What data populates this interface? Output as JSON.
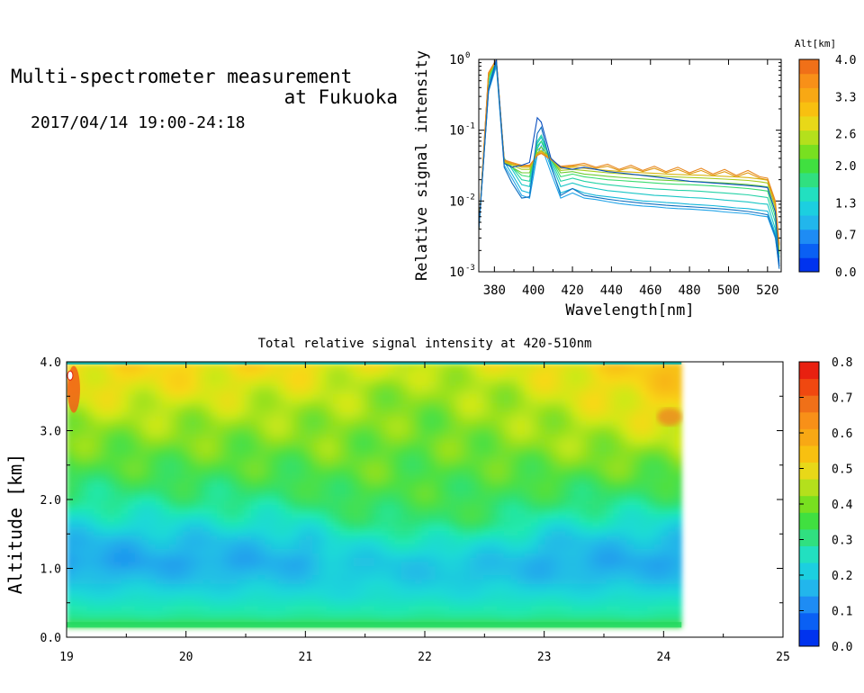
{
  "header": {
    "title_line1": "Multi-spectrometer measurement",
    "title_line2": "at Fukuoka",
    "date_range": "2017/04/14 19:00-24:18"
  },
  "chart_data": [
    {
      "type": "line",
      "xlabel": "Wavelength[nm]",
      "ylabel": "Relative signal intensity",
      "xlim": [
        372,
        527
      ],
      "ylim": [
        0.001,
        1
      ],
      "yscale": "log",
      "x_ticks": [
        "380",
        "400",
        "420",
        "440",
        "460",
        "480",
        "500",
        "520"
      ],
      "y_ticks": [
        {
          "base": "10",
          "exp": "-3"
        },
        {
          "base": "10",
          "exp": "-2"
        },
        {
          "base": "10",
          "exp": "-1"
        },
        {
          "base": "10",
          "exp": "0"
        }
      ],
      "x": [
        372,
        377,
        381,
        385,
        389,
        394,
        398,
        402,
        404,
        409,
        414,
        420,
        426,
        432,
        438,
        444,
        450,
        456,
        462,
        468,
        474,
        480,
        486,
        492,
        498,
        504,
        510,
        516,
        520,
        524,
        526
      ],
      "series": [
        {
          "altitude_km": 0.3,
          "color": "#1fa3e8",
          "values": [
            0.004,
            0.35,
            0.8,
            0.032,
            0.021,
            0.012,
            0.011,
            0.045,
            0.06,
            0.025,
            0.011,
            0.013,
            0.011,
            0.0105,
            0.0098,
            0.0092,
            0.0088,
            0.0085,
            0.0083,
            0.008,
            0.0078,
            0.0077,
            0.0075,
            0.0073,
            0.007,
            0.0068,
            0.0066,
            0.0062,
            0.006,
            0.003,
            0.0012
          ]
        },
        {
          "altitude_km": 0.6,
          "color": "#12b6da",
          "values": [
            0.004,
            0.4,
            0.85,
            0.036,
            0.024,
            0.014,
            0.013,
            0.055,
            0.07,
            0.03,
            0.013,
            0.015,
            0.013,
            0.012,
            0.0115,
            0.011,
            0.0105,
            0.01,
            0.0098,
            0.0095,
            0.0093,
            0.009,
            0.0088,
            0.0086,
            0.0083,
            0.008,
            0.0078,
            0.0074,
            0.0072,
            0.0035,
            0.0013
          ]
        },
        {
          "altitude_km": 0.9,
          "color": "#19c6c6",
          "values": [
            0.004,
            0.45,
            0.9,
            0.04,
            0.028,
            0.017,
            0.016,
            0.065,
            0.08,
            0.035,
            0.016,
            0.018,
            0.016,
            0.015,
            0.014,
            0.0135,
            0.013,
            0.0125,
            0.012,
            0.0118,
            0.0115,
            0.0112,
            0.011,
            0.0107,
            0.0103,
            0.01,
            0.0097,
            0.0092,
            0.009,
            0.004,
            0.0014
          ]
        },
        {
          "altitude_km": 1.2,
          "color": "#24d2a6",
          "values": [
            0.004,
            0.5,
            0.92,
            0.04,
            0.03,
            0.02,
            0.019,
            0.07,
            0.085,
            0.038,
            0.019,
            0.021,
            0.019,
            0.0178,
            0.017,
            0.0163,
            0.0157,
            0.0152,
            0.0148,
            0.0145,
            0.0142,
            0.014,
            0.0137,
            0.0133,
            0.013,
            0.0126,
            0.0122,
            0.0116,
            0.0112,
            0.005,
            0.0016
          ]
        },
        {
          "altitude_km": 1.6,
          "color": "#38dc6e",
          "values": [
            0.004,
            0.55,
            0.95,
            0.035,
            0.03,
            0.023,
            0.022,
            0.06,
            0.07,
            0.04,
            0.022,
            0.024,
            0.022,
            0.021,
            0.02,
            0.0195,
            0.019,
            0.0185,
            0.018,
            0.0175,
            0.0172,
            0.017,
            0.0167,
            0.0163,
            0.0159,
            0.0155,
            0.015,
            0.0143,
            0.0138,
            0.006,
            0.0018
          ]
        },
        {
          "altitude_km": 2.0,
          "color": "#6ccc30",
          "values": [
            0.004,
            0.58,
            0.96,
            0.034,
            0.03,
            0.025,
            0.025,
            0.052,
            0.058,
            0.04,
            0.025,
            0.026,
            0.024,
            0.0232,
            0.0223,
            0.0216,
            0.021,
            0.0205,
            0.02,
            0.0196,
            0.0192,
            0.019,
            0.0187,
            0.0183,
            0.018,
            0.0176,
            0.0171,
            0.0164,
            0.0158,
            0.007,
            0.0019
          ]
        },
        {
          "altitude_km": 2.4,
          "color": "#a8cc1c",
          "values": [
            0.004,
            0.6,
            0.97,
            0.035,
            0.032,
            0.028,
            0.028,
            0.048,
            0.052,
            0.04,
            0.027,
            0.028,
            0.027,
            0.026,
            0.025,
            0.0243,
            0.0237,
            0.0232,
            0.0227,
            0.0222,
            0.0218,
            0.0215,
            0.0212,
            0.0208,
            0.0204,
            0.02,
            0.0195,
            0.0187,
            0.018,
            0.008,
            0.0021
          ]
        },
        {
          "altitude_km": 2.8,
          "color": "#d8b40e",
          "values": [
            0.004,
            0.62,
            0.98,
            0.036,
            0.033,
            0.03,
            0.03,
            0.046,
            0.05,
            0.04,
            0.029,
            0.03,
            0.029,
            0.028,
            0.027,
            0.0262,
            0.0256,
            0.0251,
            0.0246,
            0.0241,
            0.0237,
            0.0234,
            0.0231,
            0.0227,
            0.0223,
            0.0219,
            0.0214,
            0.0205,
            0.0197,
            0.009,
            0.0023
          ]
        },
        {
          "altitude_km": 3.3,
          "color": "#e09a12",
          "values": [
            0.004,
            0.64,
            0.99,
            0.037,
            0.034,
            0.031,
            0.031,
            0.045,
            0.048,
            0.039,
            0.03,
            0.031,
            0.032,
            0.029,
            0.031,
            0.027,
            0.03,
            0.026,
            0.029,
            0.025,
            0.028,
            0.024,
            0.027,
            0.023,
            0.026,
            0.022,
            0.025,
            0.021,
            0.02,
            0.009,
            0.0024
          ]
        },
        {
          "altitude_km": 3.8,
          "color": "#e98a22",
          "values": [
            0.004,
            0.65,
            1.0,
            0.038,
            0.035,
            0.032,
            0.032,
            0.044,
            0.047,
            0.038,
            0.031,
            0.032,
            0.034,
            0.03,
            0.033,
            0.028,
            0.032,
            0.027,
            0.031,
            0.026,
            0.03,
            0.025,
            0.029,
            0.024,
            0.028,
            0.023,
            0.027,
            0.022,
            0.021,
            0.01,
            0.0025
          ]
        },
        {
          "altitude_km": 0.1,
          "color": "#0a4fbf",
          "values": [
            0.004,
            0.38,
            1.0,
            0.034,
            0.03,
            0.032,
            0.035,
            0.15,
            0.13,
            0.04,
            0.03,
            0.028,
            0.03,
            0.028,
            0.026,
            0.025,
            0.024,
            0.023,
            0.022,
            0.021,
            0.02,
            0.019,
            0.0185,
            0.018,
            0.0175,
            0.017,
            0.0165,
            0.016,
            0.0155,
            0.007,
            0.0012
          ]
        },
        {
          "altitude_km": 0.2,
          "color": "#0f6fc0",
          "values": [
            0.004,
            0.36,
            0.92,
            0.03,
            0.018,
            0.011,
            0.0115,
            0.09,
            0.11,
            0.032,
            0.012,
            0.015,
            0.012,
            0.0113,
            0.0106,
            0.0101,
            0.0097,
            0.0093,
            0.009,
            0.0087,
            0.0085,
            0.0083,
            0.0081,
            0.0079,
            0.0077,
            0.0074,
            0.0071,
            0.0067,
            0.0064,
            0.0032,
            0.0011
          ]
        }
      ],
      "colorbar": {
        "title": "Alt[km]",
        "tick_labels": [
          "0.0",
          "0.7",
          "1.3",
          "2.0",
          "2.6",
          "3.3",
          "4.0"
        ],
        "range": [
          0.0,
          4.0
        ],
        "colors": [
          "#0033ee",
          "#0a60f4",
          "#1e8cf4",
          "#22b6ec",
          "#1ccfe0",
          "#22e0c0",
          "#30e080",
          "#40e040",
          "#78e020",
          "#b4e01c",
          "#e8d818",
          "#f8c010",
          "#f8a814",
          "#f89018",
          "#f07018"
        ]
      }
    },
    {
      "type": "heatmap",
      "title": "Total relative signal intensity at 420-510nm",
      "ylabel": "Altitude [km]",
      "xlim": [
        19,
        25
      ],
      "ylim": [
        0.0,
        4.0
      ],
      "data_xlim": [
        19.0,
        24.15
      ],
      "x_ticks": [
        "19",
        "20",
        "21",
        "22",
        "23",
        "24",
        "25"
      ],
      "y_ticks": [
        "0.0",
        "1.0",
        "2.0",
        "3.0",
        "4.0"
      ],
      "z_range": [
        0.0,
        0.8
      ],
      "x": [
        19.0,
        20.0,
        21.0,
        21.2,
        21.5,
        22.0,
        22.3,
        22.7,
        23.0,
        24.0,
        24.15
      ],
      "altitudes": [
        0.15,
        0.3,
        0.6,
        0.9,
        1.1,
        1.4,
        1.7,
        2.0,
        2.4,
        2.8,
        3.2,
        3.6,
        3.95
      ],
      "z_profiles": [
        [
          0.34,
          0.27,
          0.21,
          0.15,
          0.12,
          0.15,
          0.21,
          0.27,
          0.33,
          0.38,
          0.42,
          0.48,
          0.5
        ],
        [
          0.34,
          0.27,
          0.21,
          0.15,
          0.13,
          0.16,
          0.22,
          0.28,
          0.34,
          0.38,
          0.42,
          0.47,
          0.5
        ],
        [
          0.34,
          0.27,
          0.21,
          0.16,
          0.14,
          0.17,
          0.23,
          0.29,
          0.34,
          0.38,
          0.41,
          0.45,
          0.49
        ],
        [
          0.34,
          0.27,
          0.21,
          0.18,
          0.17,
          0.21,
          0.27,
          0.32,
          0.36,
          0.39,
          0.41,
          0.44,
          0.48
        ],
        [
          0.34,
          0.27,
          0.21,
          0.18,
          0.18,
          0.22,
          0.29,
          0.33,
          0.36,
          0.38,
          0.4,
          0.42,
          0.46
        ],
        [
          0.34,
          0.27,
          0.21,
          0.17,
          0.17,
          0.23,
          0.3,
          0.33,
          0.35,
          0.36,
          0.38,
          0.4,
          0.44
        ],
        [
          0.34,
          0.27,
          0.21,
          0.17,
          0.17,
          0.23,
          0.31,
          0.33,
          0.35,
          0.38,
          0.4,
          0.42,
          0.45
        ],
        [
          0.34,
          0.27,
          0.21,
          0.16,
          0.16,
          0.21,
          0.28,
          0.32,
          0.35,
          0.39,
          0.41,
          0.43,
          0.46
        ],
        [
          0.34,
          0.27,
          0.21,
          0.15,
          0.14,
          0.17,
          0.24,
          0.3,
          0.36,
          0.4,
          0.42,
          0.45,
          0.48
        ],
        [
          0.34,
          0.27,
          0.21,
          0.15,
          0.13,
          0.16,
          0.22,
          0.29,
          0.36,
          0.42,
          0.48,
          0.52,
          0.54
        ],
        [
          0.34,
          0.27,
          0.21,
          0.15,
          0.13,
          0.16,
          0.22,
          0.29,
          0.36,
          0.43,
          0.5,
          0.53,
          0.55
        ]
      ],
      "colorbar": {
        "tick_labels": [
          "0.0",
          "0.1",
          "0.2",
          "0.3",
          "0.4",
          "0.5",
          "0.6",
          "0.7",
          "0.8"
        ],
        "range": [
          0.0,
          0.8
        ],
        "colors": [
          "#0033ee",
          "#0a60f4",
          "#1e8cf4",
          "#22b6ec",
          "#1ccfe0",
          "#22e0c0",
          "#30e080",
          "#40e040",
          "#78e020",
          "#b4e01c",
          "#e8d818",
          "#f8c010",
          "#f8a814",
          "#f89018",
          "#f07018",
          "#f04810",
          "#e82010"
        ]
      }
    }
  ]
}
